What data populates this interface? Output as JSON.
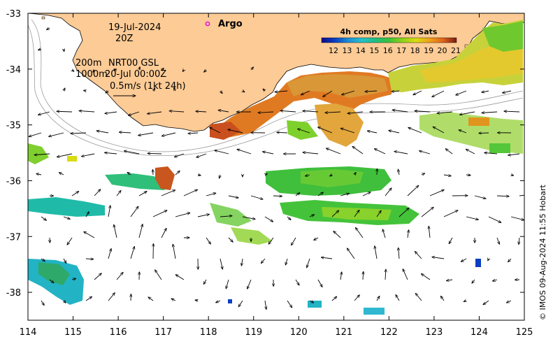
{
  "map": {
    "domain": "ocean-temperature-current-map",
    "date": "19-Jul-2024",
    "hour": "20Z",
    "legend_argo": "Argo",
    "depth_label": "200m",
    "product": "NRT00 GSL",
    "depth2_label": "1000m",
    "valid_time": "20-Jul 00:00Z",
    "velocity_scale": "0.5m/s (1kt 24h)",
    "colorbar_title": "4h comp, p50, All Sats",
    "colorbar_ticks": [
      "12",
      "13",
      "14",
      "15",
      "16",
      "17",
      "18",
      "19",
      "20",
      "21"
    ],
    "credit": "© IMOS 09-Aug-2024 11:55 Hobart",
    "x_ticks": [
      "114",
      "115",
      "116",
      "117",
      "118",
      "119",
      "120",
      "121",
      "122",
      "123",
      "124",
      "125"
    ],
    "y_ticks": [
      "-33",
      "-34",
      "-35",
      "-36",
      "-37",
      "-38"
    ],
    "lon_range": [
      114,
      125
    ],
    "lat_range": [
      -33,
      -38.5
    ],
    "colors": {
      "land": "#fccb96",
      "argo": "#e400e4",
      "colormap": [
        "#0c0c8a",
        "#0b3fc1",
        "#1e8fd6",
        "#27c0c9",
        "#1fbf83",
        "#3ec13a",
        "#8fd21a",
        "#d8dc12",
        "#f0a11a",
        "#e0641d",
        "#b5381e",
        "#7a1a12"
      ]
    }
  }
}
